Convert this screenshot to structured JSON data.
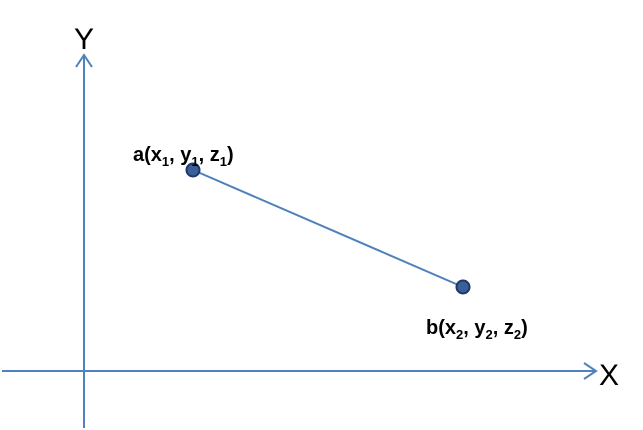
{
  "colors": {
    "axis": "#4f81bd",
    "segment": "#4f81bd",
    "point_fill": "#3a5f9a",
    "point_stroke": "#1f3864",
    "text": "#000000"
  },
  "axes": {
    "x_label": "X",
    "y_label": "Y"
  },
  "points": {
    "a": {
      "name": "a(",
      "x_base": "x",
      "x_sub": "1",
      "y_base": "y",
      "y_sub": "1",
      "z_base": "z",
      "z_sub": "1",
      "close": ")"
    },
    "b": {
      "name": "b(",
      "x_base": "x",
      "x_sub": "2",
      "y_base": "y",
      "y_sub": "2",
      "z_base": "z",
      "z_sub": "2",
      "close": ")"
    }
  },
  "separator": ", "
}
